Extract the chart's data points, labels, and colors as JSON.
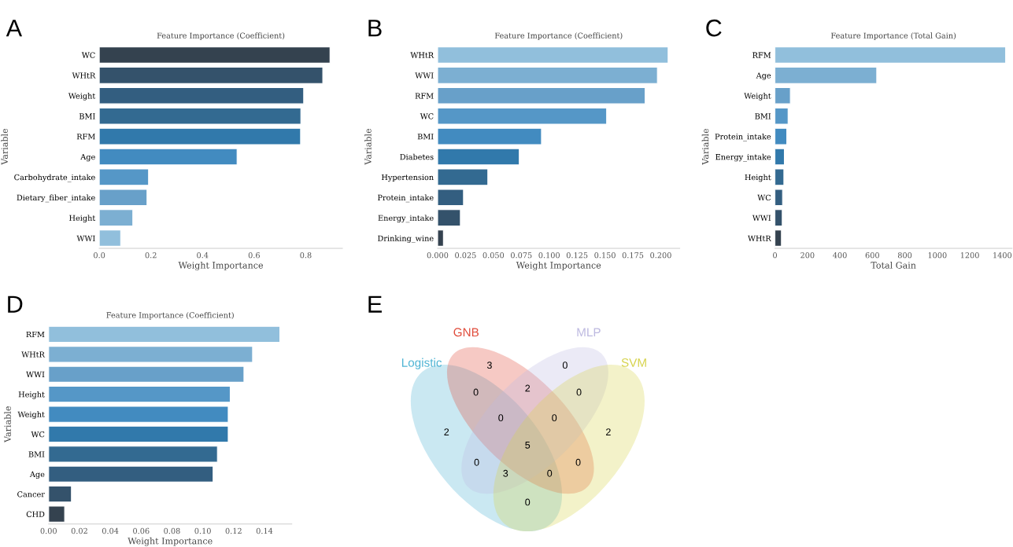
{
  "chart_data": [
    {
      "type": "bar",
      "orientation": "horizontal",
      "title": "Feature Importance (Coefficient)",
      "xlabel": "Weight Importance",
      "ylabel": "Variable",
      "annotations": [
        "A"
      ],
      "categories": [
        "WC",
        "WHtR",
        "Weight",
        "BMI",
        "RFM",
        "Age",
        "Carbohydrate_intake",
        "Dietary_fiber_intake",
        "Height",
        "WWI"
      ],
      "values": [
        0.894,
        0.866,
        0.792,
        0.781,
        0.78,
        0.534,
        0.191,
        0.185,
        0.13,
        0.083
      ],
      "colors": [
        "#34424f",
        "#34526b",
        "#335e80",
        "#336a91",
        "#3179ab",
        "#428bc0",
        "#5597c7",
        "#68a0c9",
        "#7cafd2",
        "#91bfdc"
      ],
      "xlim": [
        0,
        0.942
      ],
      "xticks": [
        {
          "value": 0,
          "label": "0.0"
        },
        {
          "value": 0.2,
          "label": "0.2"
        },
        {
          "value": 0.4,
          "label": "0.4"
        },
        {
          "value": 0.6,
          "label": "0.6"
        },
        {
          "value": 0.8,
          "label": "0.8"
        }
      ],
      "grid": false
    },
    {
      "type": "bar",
      "orientation": "horizontal",
      "title": "Feature Importance (Coefficient)",
      "xlabel": "Weight Importance",
      "ylabel": "Variable",
      "annotations": [
        "B"
      ],
      "categories": [
        "WHtR",
        "WWI",
        "RFM",
        "WC",
        "BMI",
        "Diabetes",
        "Hypertension",
        "Protein_intake",
        "Energy_intake",
        "Drinking_wine"
      ],
      "values": [
        0.2066,
        0.197,
        0.186,
        0.1515,
        0.0931,
        0.0732,
        0.045,
        0.0232,
        0.0204,
        0.0052
      ],
      "colors": [
        "#91bfdc",
        "#7cafd2",
        "#68a0c9",
        "#5597c7",
        "#428bc0",
        "#3179ab",
        "#336a91",
        "#335e80",
        "#34526b",
        "#34424f"
      ],
      "xlim": [
        0,
        0.217
      ],
      "xticks": [
        {
          "value": 0,
          "label": "0.000"
        },
        {
          "value": 0.025,
          "label": "0.025"
        },
        {
          "value": 0.05,
          "label": "0.050"
        },
        {
          "value": 0.075,
          "label": "0.075"
        },
        {
          "value": 0.1,
          "label": "0.100"
        },
        {
          "value": 0.125,
          "label": "0.125"
        },
        {
          "value": 0.15,
          "label": "0.150"
        },
        {
          "value": 0.175,
          "label": "0.175"
        },
        {
          "value": 0.2,
          "label": "0.200"
        }
      ],
      "grid": false
    },
    {
      "type": "bar",
      "orientation": "horizontal",
      "title": "Feature Importance (Total Gain)",
      "xlabel": "Total Gain",
      "ylabel": "Variable",
      "annotations": [
        "C"
      ],
      "categories": [
        "RFM",
        "Age",
        "Weight",
        "BMI",
        "Protein_intake",
        "Energy_intake",
        "Height",
        "WC",
        "WWI",
        "WHtR"
      ],
      "values": [
        1421,
        627,
        95,
        81,
        73,
        58,
        55,
        47,
        45,
        40
      ],
      "colors": [
        "#91bfdc",
        "#7cafd2",
        "#68a0c9",
        "#5597c7",
        "#428bc0",
        "#3179ab",
        "#336a91",
        "#335e80",
        "#34526b",
        "#34424f"
      ],
      "xlim": [
        0,
        1460
      ],
      "xticks": [
        0,
        200,
        400,
        600,
        800,
        1000,
        1200,
        1400
      ],
      "grid": false
    },
    {
      "type": "bar",
      "orientation": "horizontal",
      "title": "Feature Importance (Coefficient)",
      "xlabel": "Weight Importance",
      "ylabel": "Variable",
      "annotations": [
        "D"
      ],
      "categories": [
        "RFM",
        "WHtR",
        "WWI",
        "Height",
        "Weight",
        "WC",
        "BMI",
        "Age",
        "Cancer",
        "CHD"
      ],
      "values": [
        0.15,
        0.1323,
        0.1267,
        0.1178,
        0.1165,
        0.1165,
        0.1095,
        0.1067,
        0.0148,
        0.0104
      ],
      "colors": [
        "#91bfdc",
        "#7cafd2",
        "#68a0c9",
        "#5597c7",
        "#428bc0",
        "#3179ab",
        "#336a91",
        "#335e80",
        "#34526b",
        "#34424f"
      ],
      "xlim": [
        0,
        0.1577
      ],
      "xticks": [
        {
          "value": 0,
          "label": "0.00"
        },
        {
          "value": 0.02,
          "label": "0.02"
        },
        {
          "value": 0.04,
          "label": "0.04"
        },
        {
          "value": 0.06,
          "label": "0.06"
        },
        {
          "value": 0.08,
          "label": "0.08"
        },
        {
          "value": 0.1,
          "label": "0.10"
        },
        {
          "value": 0.12,
          "label": "0.12"
        },
        {
          "value": 0.14,
          "label": "0.14"
        }
      ],
      "grid": false
    },
    {
      "type": "other",
      "annotations": [
        "E",
        "2",
        "3",
        "0",
        "2",
        "0",
        "2",
        "0",
        "0",
        "0",
        "0",
        "0",
        "0",
        "3",
        "0",
        "5"
      ],
      "series": [
        {
          "name": "Logistic",
          "color": "#4fb4d4"
        },
        {
          "name": "GNB",
          "color": "#e04b3a"
        },
        {
          "name": "MLP",
          "color": "#bdb9e0"
        },
        {
          "name": "SVM",
          "color": "#d6d34c"
        }
      ]
    }
  ]
}
